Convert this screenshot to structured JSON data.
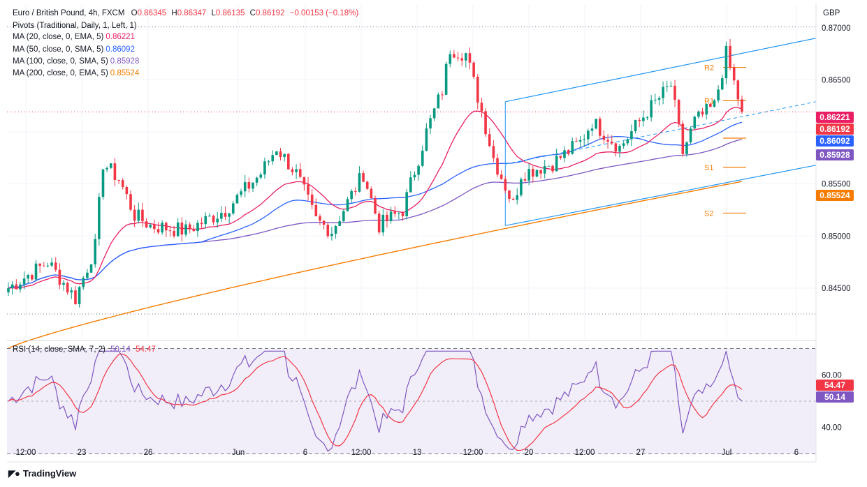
{
  "header": {
    "symbol": "Euro / British Pound, 4h, FXCM",
    "o_label": "O",
    "o_value": "0.86345",
    "h_label": "H",
    "h_value": "0.86347",
    "l_label": "L",
    "l_value": "0.86135",
    "c_label": "C",
    "c_value": "0.86192",
    "change": "−0.00153 (−0.18%)",
    "up_color": "#089981",
    "down_color": "#f23645"
  },
  "indicators": [
    {
      "label": "Pivots (Traditional, Daily, 1, Left, 1)",
      "value": "",
      "color": "#131722"
    },
    {
      "label": "MA (20, close, 0, EMA, 5)",
      "value": "0.86221",
      "color": "#e91e63"
    },
    {
      "label": "MA (50, close, 0, SMA, 5)",
      "value": "0.86092",
      "color": "#2962ff"
    },
    {
      "label": "MA (100, close, 0, SMA, 5)",
      "value": "0.85928",
      "color": "#7e57c2"
    },
    {
      "label": "MA (200, close, 0, EMA, 5)",
      "value": "0.85524",
      "color": "#f57c00"
    }
  ],
  "price_labels": [
    {
      "value": "0.86221",
      "color": "#e91e63"
    },
    {
      "value": "0.86192",
      "color": "#f23645"
    },
    {
      "value": "0.86092",
      "color": "#2962ff"
    },
    {
      "value": "0.85928",
      "color": "#7e57c2"
    },
    {
      "value": "0.85524",
      "color": "#f57c00"
    }
  ],
  "rsi": {
    "label": "RSI (14, close, SMA, 7, 2)",
    "rsi_value": "50.14",
    "ma_value": "54.47",
    "rsi_color": "#7e57c2",
    "ma_color": "#f23645"
  },
  "pivot_labels": [
    "R2",
    "R1",
    "S1",
    "S2"
  ],
  "footer": {
    "brand": "TradingView",
    "logo": "tradingview-logo"
  },
  "chart_data": {
    "type": "candlestick",
    "currency": "GBP",
    "y_ticks": [
      "0.87000",
      "0.86500",
      "0.86000",
      "0.85500",
      "0.85000",
      "0.84500"
    ],
    "ylim": [
      0.8405,
      0.872
    ],
    "x_ticks": [
      "12:00",
      "23",
      "26",
      "Jun",
      "6",
      "12:00",
      "13",
      "12:00",
      "20",
      "12:00",
      "27",
      "Jul",
      "6"
    ],
    "rsi_ticks": [
      "60.00",
      "40.00"
    ],
    "rsi_ylim": [
      28,
      72
    ],
    "rsi_band": [
      30,
      70
    ],
    "bars": 175,
    "anchors": [
      [
        0,
        0.845
      ],
      [
        10,
        0.8475
      ],
      [
        17,
        0.844
      ],
      [
        22,
        0.849
      ],
      [
        24,
        0.857
      ],
      [
        28,
        0.8555
      ],
      [
        32,
        0.852
      ],
      [
        36,
        0.851
      ],
      [
        45,
        0.8505
      ],
      [
        55,
        0.8525
      ],
      [
        64,
        0.856
      ],
      [
        68,
        0.8585
      ],
      [
        73,
        0.856
      ],
      [
        78,
        0.8515
      ],
      [
        82,
        0.8505
      ],
      [
        90,
        0.856
      ],
      [
        94,
        0.851
      ],
      [
        100,
        0.8525
      ],
      [
        106,
        0.86
      ],
      [
        110,
        0.864
      ],
      [
        112,
        0.868
      ],
      [
        116,
        0.8675
      ],
      [
        120,
        0.862
      ],
      [
        123,
        0.8575
      ],
      [
        128,
        0.853
      ],
      [
        130,
        0.856
      ],
      [
        138,
        0.857
      ],
      [
        145,
        0.859
      ],
      [
        148,
        0.861
      ],
      [
        155,
        0.8585
      ],
      [
        162,
        0.862
      ],
      [
        168,
        0.8645
      ],
      [
        171,
        0.858
      ],
      [
        174,
        0.861
      ],
      [
        179,
        0.8625
      ],
      [
        182,
        0.8675
      ],
      [
        186,
        0.8619
      ]
    ],
    "ma20_end": 0.86221,
    "ma50_end": 0.86092,
    "ma100_end": 0.85928,
    "ma200_end": 0.85524,
    "pivots": {
      "R2": 0.8662,
      "R1": 0.863,
      "P": 0.8594,
      "S1": 0.8566,
      "S2": 0.8522
    },
    "last_price": 0.86192,
    "grid": true
  }
}
